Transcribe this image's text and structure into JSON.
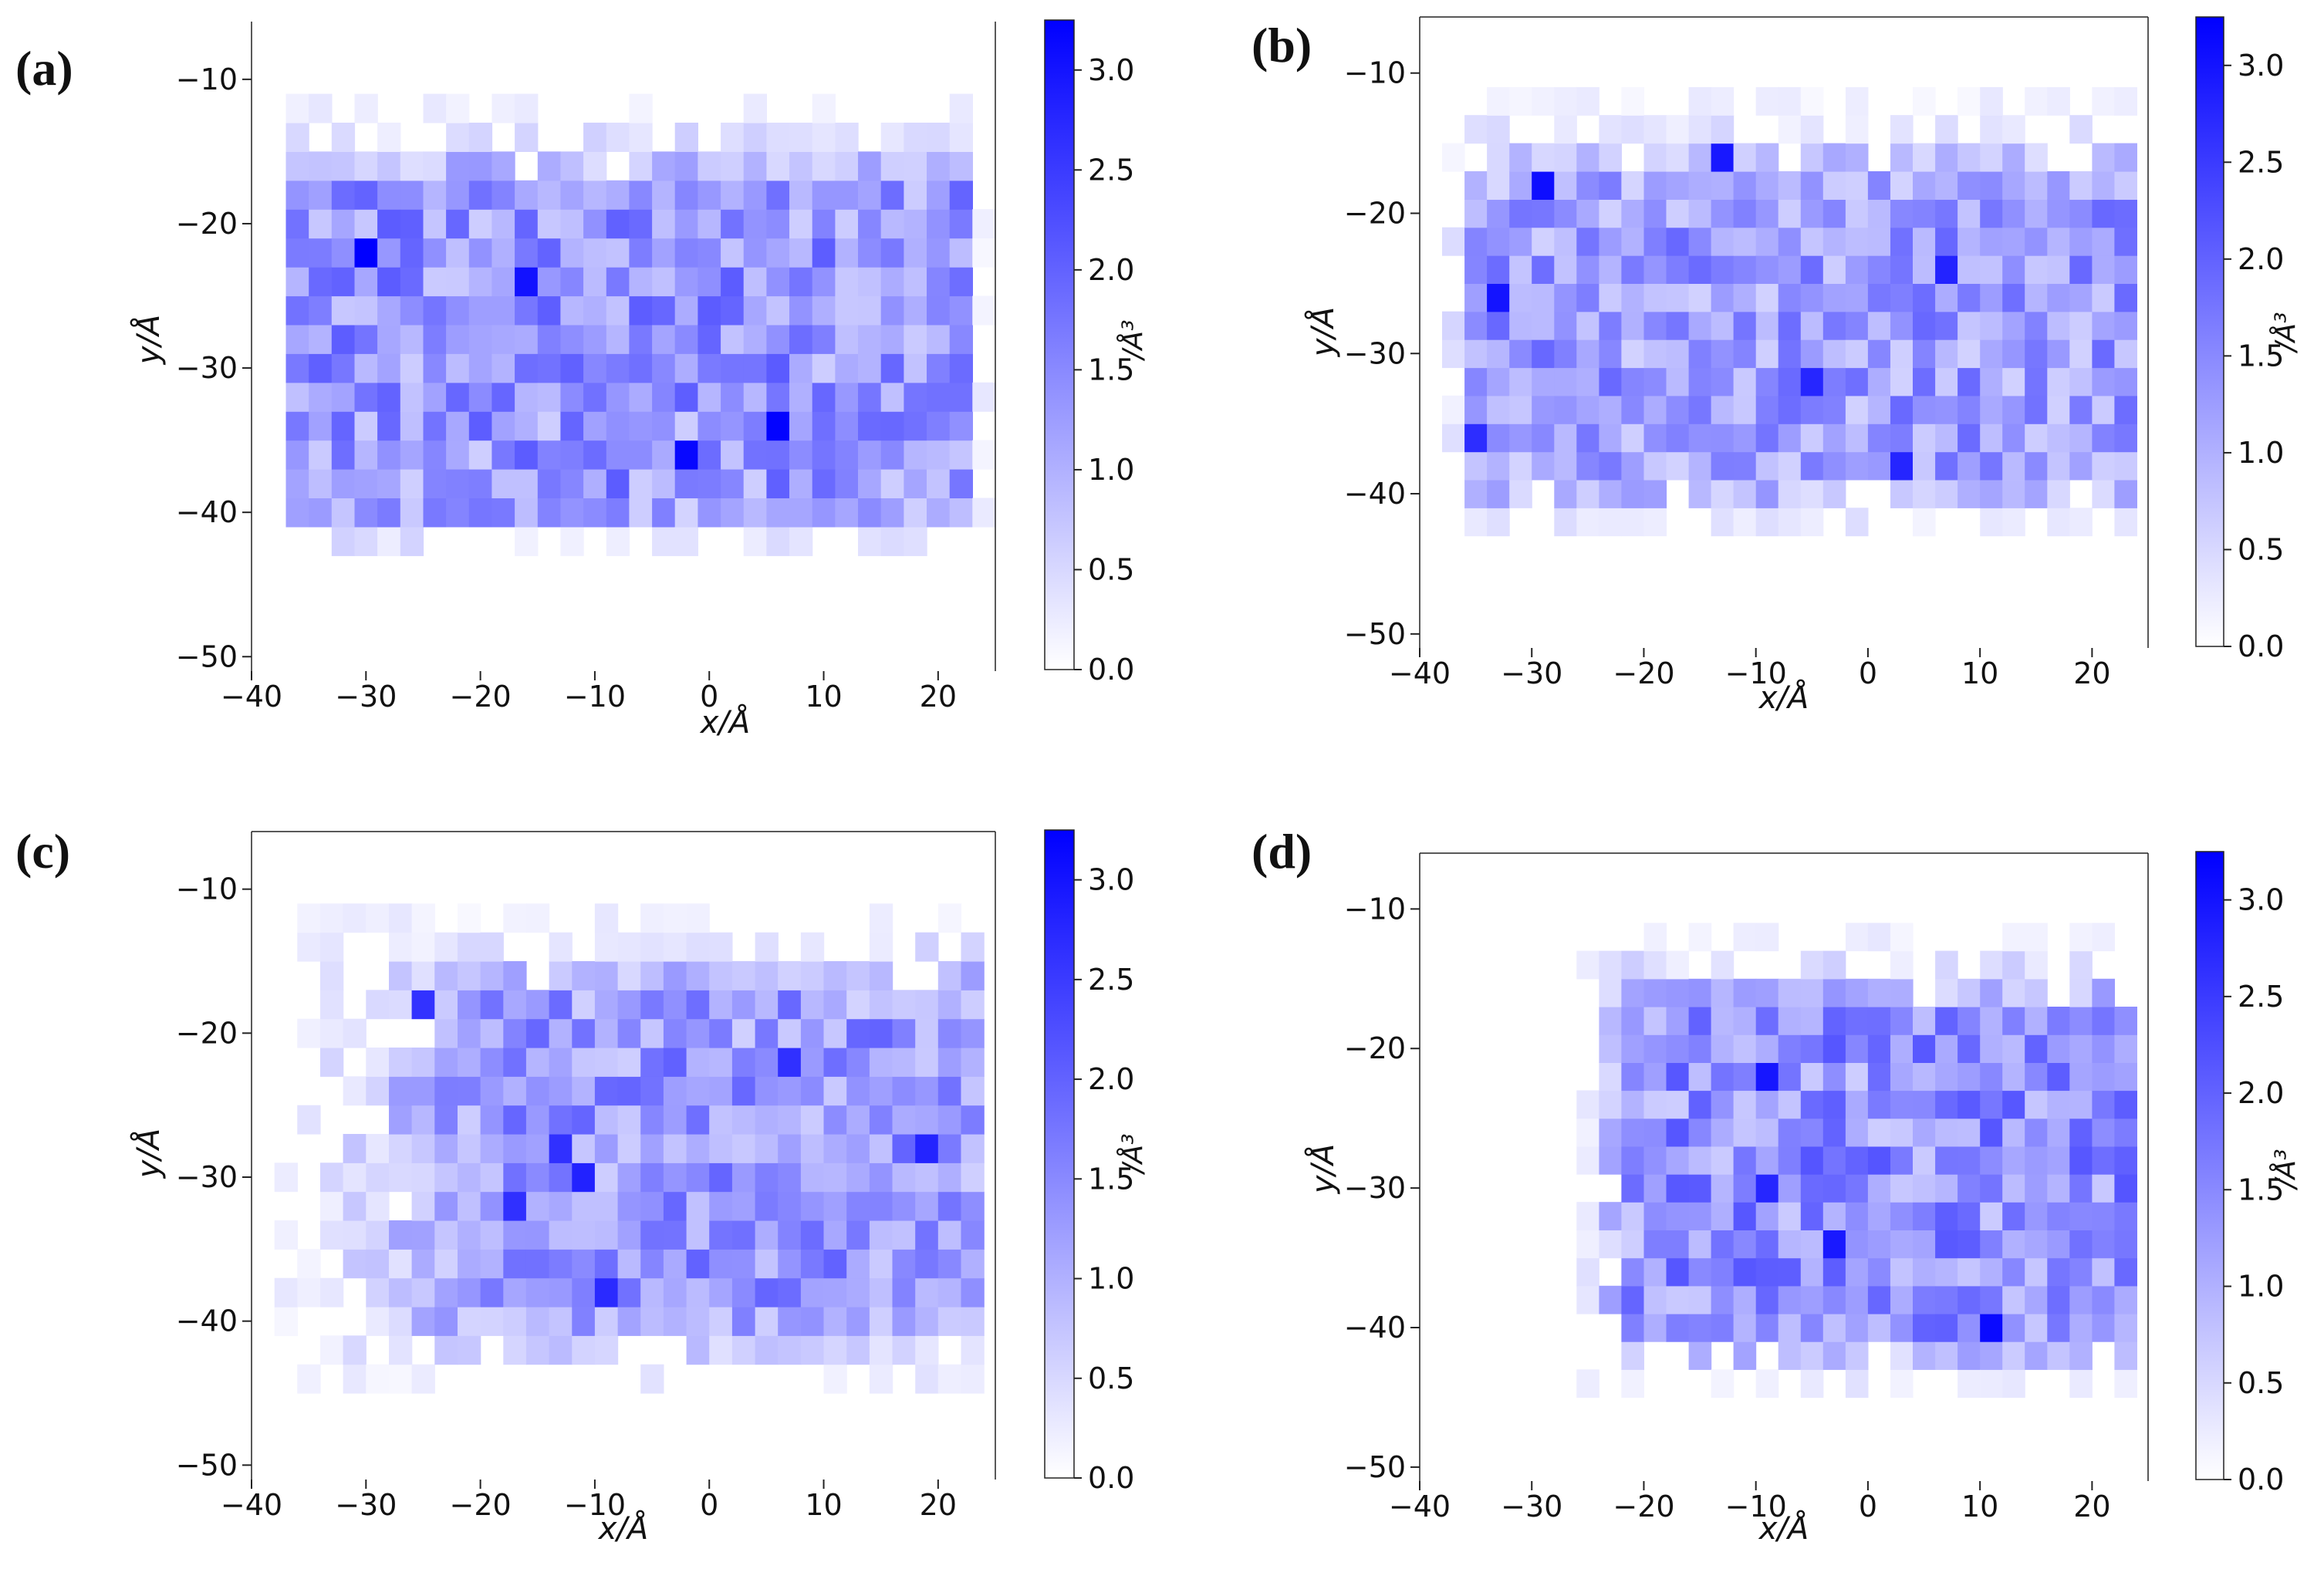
{
  "figure": {
    "title": ""
  },
  "chart_data": [
    {
      "panel_label": "(a)",
      "type": "heatmap",
      "xlabel": "x/Å",
      "ylabel": "y/Å",
      "xlim": [
        -40,
        25
      ],
      "ylim": [
        -51,
        -6
      ],
      "x_ticks": [
        "−40",
        "−30",
        "−20",
        "−10",
        "0",
        "10",
        "20"
      ],
      "y_ticks": [
        "−10",
        "−20",
        "−30",
        "−40",
        "−50"
      ],
      "colorbar": {
        "label": "/Å³",
        "range": [
          0,
          3.25
        ],
        "ticks": [
          "0.0",
          "0.5",
          "1.0",
          "1.5",
          "2.0",
          "2.5",
          "3.0"
        ],
        "low_color": "#ffffff",
        "high_color": "#0000ff"
      },
      "bin_size": 2,
      "density_x": [
        -37,
        24
      ],
      "density_y": [
        -43,
        -12
      ],
      "core_x": [
        -36,
        23
      ],
      "core_y": [
        -39,
        -19
      ],
      "mean_density": 1.35,
      "peak_density": 3.25,
      "frame_sides": [
        "left",
        "right"
      ]
    },
    {
      "panel_label": "(b)",
      "type": "heatmap",
      "xlabel": "x/Å",
      "ylabel": "y/Å",
      "xlim": [
        -40,
        25
      ],
      "ylim": [
        -51,
        -6
      ],
      "x_ticks": [
        "−40",
        "−30",
        "−20",
        "−10",
        "0",
        "10",
        "20"
      ],
      "y_ticks": [
        "−10",
        "−20",
        "−30",
        "−40",
        "−50"
      ],
      "colorbar": {
        "label": "/Å³",
        "range": [
          0,
          3.25
        ],
        "ticks": [
          "0.0",
          "0.5",
          "1.0",
          "1.5",
          "2.0",
          "2.5",
          "3.0"
        ],
        "low_color": "#ffffff",
        "high_color": "#0000ff"
      },
      "bin_size": 2,
      "density_x": [
        -38,
        24
      ],
      "density_y": [
        -43,
        -12
      ],
      "core_x": [
        -34,
        24
      ],
      "core_y": [
        -38,
        -20
      ],
      "mean_density": 1.25,
      "peak_density": 3.1,
      "frame_sides": [
        "left",
        "right",
        "top"
      ]
    },
    {
      "panel_label": "(c)",
      "type": "heatmap",
      "xlabel": "x/Å",
      "ylabel": "y/Å",
      "xlim": [
        -40,
        25
      ],
      "ylim": [
        -51,
        -6
      ],
      "x_ticks": [
        "−40",
        "−30",
        "−20",
        "−10",
        "0",
        "10",
        "20"
      ],
      "y_ticks": [
        "−10",
        "−20",
        "−30",
        "−40",
        "−50"
      ],
      "colorbar": {
        "label": "/Å³",
        "range": [
          0,
          3.25
        ],
        "ticks": [
          "0.0",
          "0.5",
          "1.0",
          "1.5",
          "2.0",
          "2.5",
          "3.0"
        ],
        "low_color": "#ffffff",
        "high_color": "#0000ff"
      },
      "bin_size": 2,
      "density_x": [
        -38,
        24
      ],
      "density_y": [
        -45,
        -12
      ],
      "core_x": [
        -18,
        24
      ],
      "core_y": [
        -38,
        -19
      ],
      "mean_density": 1.3,
      "peak_density": 2.9,
      "frame_sides": [
        "left",
        "right",
        "top"
      ]
    },
    {
      "panel_label": "(d)",
      "type": "heatmap",
      "xlabel": "x/Å",
      "ylabel": "y/Å",
      "xlim": [
        -40,
        25
      ],
      "ylim": [
        -51,
        -6
      ],
      "x_ticks": [
        "−40",
        "−30",
        "−20",
        "−10",
        "0",
        "10",
        "20"
      ],
      "y_ticks": [
        "−10",
        "−20",
        "−30",
        "−40",
        "−50"
      ],
      "colorbar": {
        "label": "/Å³",
        "range": [
          0,
          3.25
        ],
        "ticks": [
          "0.0",
          "0.5",
          "1.0",
          "1.5",
          "2.0",
          "2.5",
          "3.0"
        ],
        "low_color": "#ffffff",
        "high_color": "#0000ff"
      },
      "bin_size": 2,
      "density_x": [
        -26,
        24
      ],
      "density_y": [
        -45,
        -12
      ],
      "core_x": [
        -20,
        24
      ],
      "core_y": [
        -39,
        -19
      ],
      "mean_density": 1.4,
      "peak_density": 3.2,
      "frame_sides": [
        "left",
        "right",
        "top"
      ]
    }
  ]
}
